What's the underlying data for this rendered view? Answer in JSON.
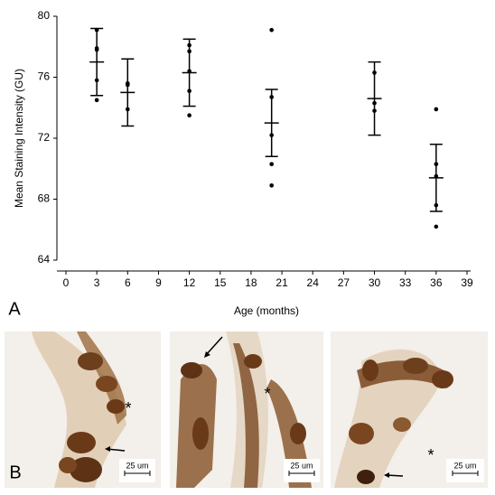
{
  "chart_data": {
    "type": "scatter",
    "x_label": "Age (months)",
    "y_label": "Mean Staining Intensity (GU)",
    "x": [
      3,
      6,
      12,
      20,
      30,
      36
    ],
    "points": [
      [
        79.1,
        77.9,
        77.8,
        75.8,
        74.5
      ],
      [
        75.6,
        75.5,
        73.9
      ],
      [
        78.1,
        77.7,
        76.4,
        75.1,
        73.5
      ],
      [
        79.1,
        74.7,
        72.2,
        70.3,
        68.9
      ],
      [
        76.3,
        74.3,
        73.8
      ],
      [
        73.9,
        70.3,
        69.5,
        67.6,
        66.2
      ]
    ],
    "mean": [
      77.0,
      75.0,
      76.3,
      73.0,
      74.6,
      69.4
    ],
    "error": [
      2.2,
      2.2,
      2.2,
      2.2,
      2.4,
      2.2
    ],
    "color": "#000000",
    "xlim": [
      0,
      39
    ],
    "xticks": [
      0,
      3,
      6,
      9,
      12,
      15,
      18,
      21,
      24,
      27,
      30,
      33,
      36,
      39
    ],
    "ylim": [
      64,
      80
    ],
    "yticks": [
      64,
      68,
      72,
      76,
      80
    ]
  },
  "figure": {
    "panel_a": "A",
    "panel_b": "B",
    "micrographs": [
      {
        "asterisk": "*",
        "scale_bar": "25 um"
      },
      {
        "asterisk": "*",
        "scale_bar": "25 um"
      },
      {
        "asterisk": "*",
        "scale_bar": "25 um"
      }
    ]
  }
}
